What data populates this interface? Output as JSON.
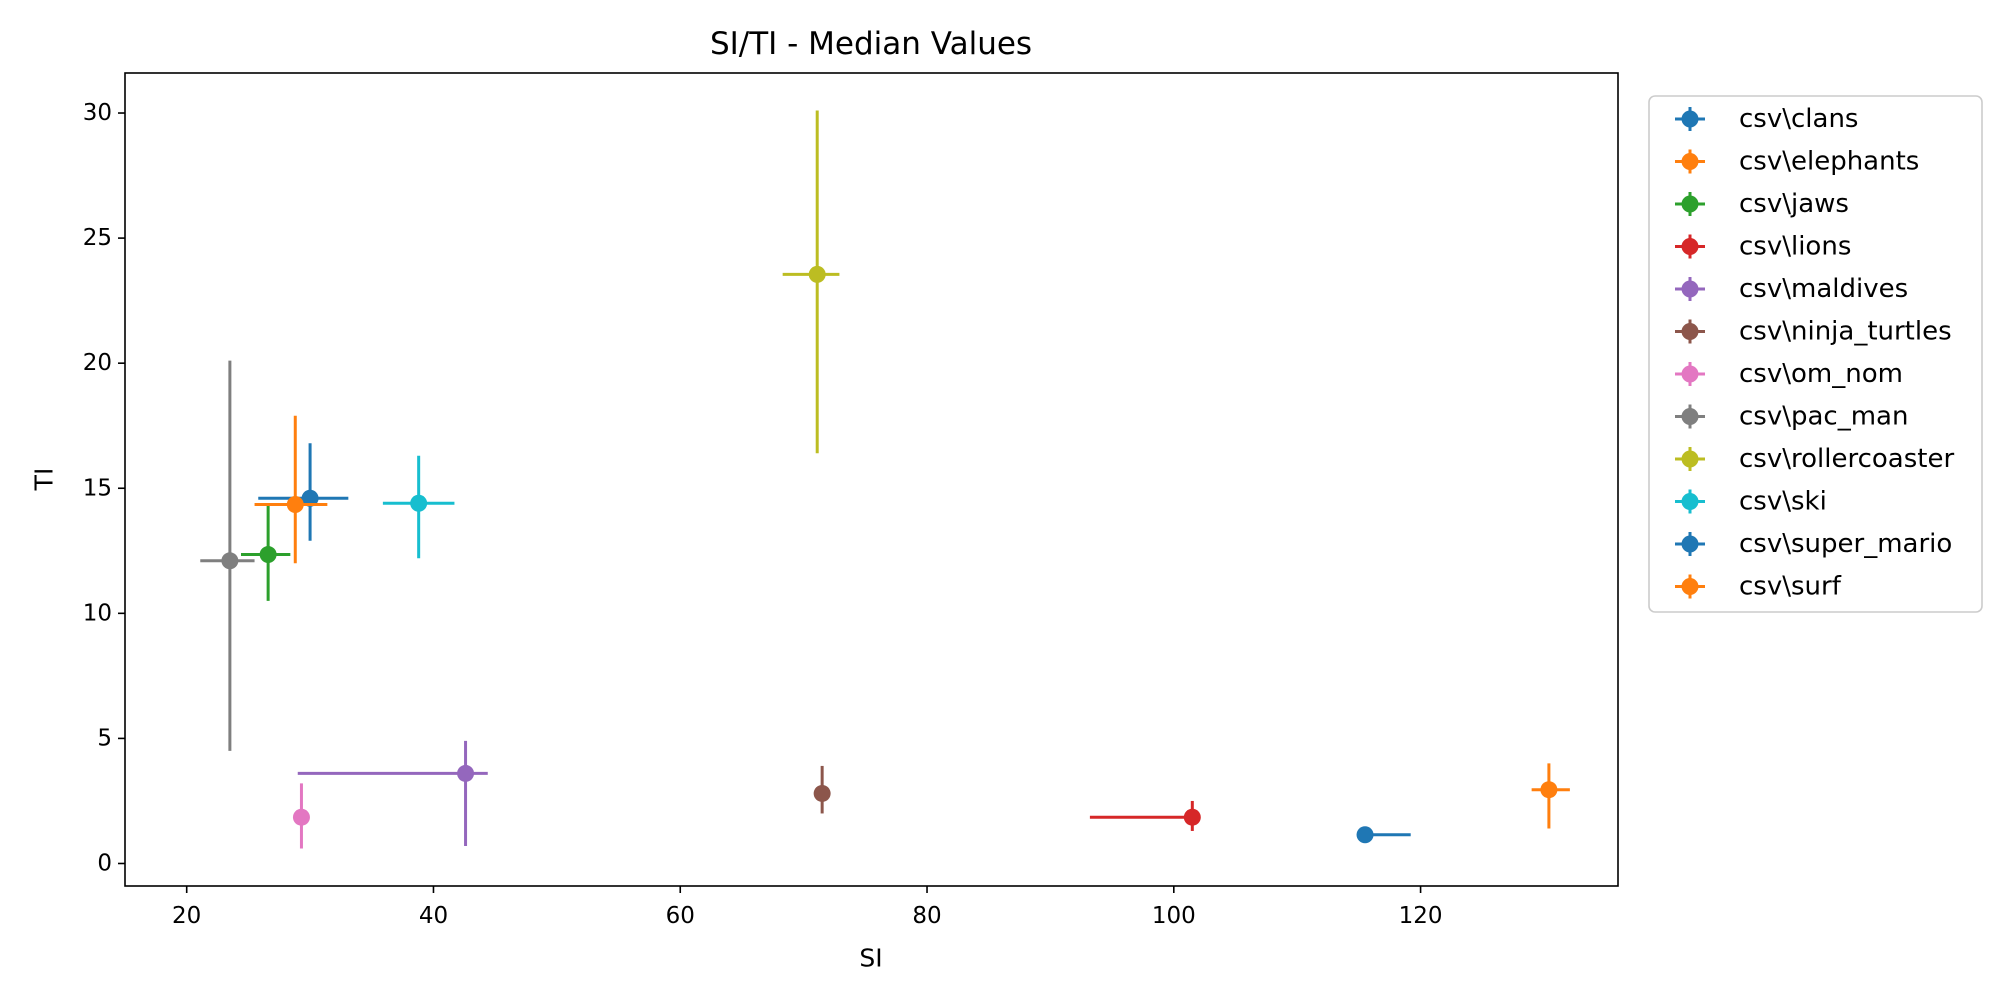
{
  "chart_data": {
    "type": "scatter",
    "variant": "errorbar",
    "title": "SI/TI - Median Values",
    "xlabel": "SI",
    "ylabel": "TI",
    "xlim": [
      15,
      136
    ],
    "ylim": [
      -0.9,
      31.6
    ],
    "xticks": [
      20,
      40,
      60,
      80,
      100,
      120
    ],
    "yticks": [
      0,
      5,
      10,
      15,
      20,
      25,
      30
    ],
    "grid": false,
    "legend_position": "outside-right-top",
    "series": [
      {
        "name": "csv\\clans",
        "color": "#1f77b4",
        "x": 115.5,
        "y": 1.15,
        "xerr": [
          115.5,
          119.2
        ],
        "yerr": [
          1.15,
          1.15
        ]
      },
      {
        "name": "csv\\elephants",
        "color": "#ff7f0e",
        "x": 130.4,
        "y": 2.95,
        "xerr": [
          129.0,
          132.1
        ],
        "yerr": [
          1.4,
          4.0
        ]
      },
      {
        "name": "csv\\jaws",
        "color": "#2ca02c",
        "x": 26.6,
        "y": 12.35,
        "xerr": [
          24.4,
          28.4
        ],
        "yerr": [
          10.5,
          14.3
        ]
      },
      {
        "name": "csv\\lions",
        "color": "#d62728",
        "x": 101.5,
        "y": 1.85,
        "xerr": [
          93.2,
          101.5
        ],
        "yerr": [
          1.3,
          2.5
        ]
      },
      {
        "name": "csv\\maldives",
        "color": "#9467bd",
        "x": 42.6,
        "y": 3.6,
        "xerr": [
          29.0,
          44.4
        ],
        "yerr": [
          0.7,
          4.9
        ]
      },
      {
        "name": "csv\\ninja_turtles",
        "color": "#8c564b",
        "x": 71.5,
        "y": 2.8,
        "xerr": [
          71.5,
          71.5
        ],
        "yerr": [
          2.0,
          3.9
        ]
      },
      {
        "name": "csv\\om_nom",
        "color": "#e377c2",
        "x": 29.3,
        "y": 1.85,
        "xerr": [
          29.3,
          29.3
        ],
        "yerr": [
          0.6,
          3.2
        ]
      },
      {
        "name": "csv\\pac_man",
        "color": "#7f7f7f",
        "x": 23.5,
        "y": 12.1,
        "xerr": [
          21.1,
          25.5
        ],
        "yerr": [
          4.5,
          20.1
        ]
      },
      {
        "name": "csv\\rollercoaster",
        "color": "#bcbd22",
        "x": 71.1,
        "y": 23.55,
        "xerr": [
          68.3,
          72.9
        ],
        "yerr": [
          16.4,
          30.1
        ]
      },
      {
        "name": "csv\\ski",
        "color": "#17becf",
        "x": 38.8,
        "y": 14.4,
        "xerr": [
          35.9,
          41.7
        ],
        "yerr": [
          12.2,
          16.3
        ]
      },
      {
        "name": "csv\\super_mario",
        "color": "#1f77b4",
        "x": 30.0,
        "y": 14.6,
        "xerr": [
          25.8,
          33.1
        ],
        "yerr": [
          12.9,
          16.8
        ]
      },
      {
        "name": "csv\\surf",
        "color": "#ff7f0e",
        "x": 28.8,
        "y": 14.35,
        "xerr": [
          25.5,
          31.4
        ],
        "yerr": [
          12.0,
          17.9
        ]
      }
    ]
  }
}
